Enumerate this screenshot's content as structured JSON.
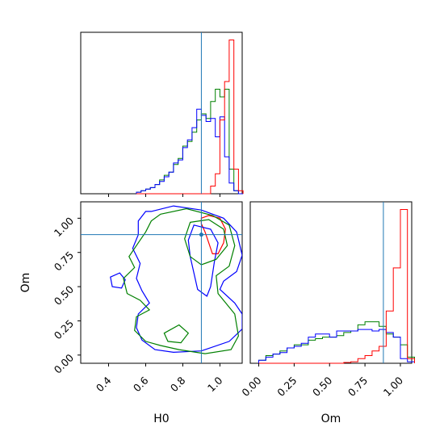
{
  "chart_data": {
    "type": "corner",
    "parameters": [
      "H0",
      "Om"
    ],
    "truth": {
      "H0": 0.9,
      "Om": 0.88
    },
    "series_colors": {
      "red": "#ff0000",
      "green": "#008000",
      "blue": "#0000ff",
      "truth": "#1f77b4"
    },
    "panels": {
      "hist_H0": {
        "xlim": [
          0.25,
          1.12
        ],
        "x_ticks": [
          0.4,
          0.6,
          0.8,
          1.0
        ],
        "x_tick_labels": [
          "0.4",
          "0.6",
          "0.8",
          "1.0"
        ],
        "bins": [
          0.55,
          0.575,
          0.6,
          0.625,
          0.65,
          0.675,
          0.7,
          0.725,
          0.75,
          0.775,
          0.8,
          0.825,
          0.85,
          0.875,
          0.9,
          0.925,
          0.95,
          0.975,
          1.0,
          1.025,
          1.05,
          1.075,
          1.1
        ],
        "red": [
          0,
          0,
          0,
          0,
          0,
          0,
          0,
          0,
          0,
          0,
          0,
          0,
          0,
          0,
          0,
          0,
          0.05,
          0.13,
          0.48,
          0.73,
          1.0,
          0.16,
          0.02
        ],
        "green": [
          0.01,
          0.02,
          0.03,
          0.04,
          0.06,
          0.09,
          0.12,
          0.14,
          0.19,
          0.23,
          0.31,
          0.34,
          0.4,
          0.48,
          0.52,
          0.49,
          0.6,
          0.68,
          0.63,
          0.68,
          0.16,
          0.02,
          0
        ],
        "blue": [
          0.01,
          0.02,
          0.03,
          0.04,
          0.06,
          0.08,
          0.11,
          0.14,
          0.2,
          0.22,
          0.3,
          0.35,
          0.43,
          0.55,
          0.51,
          0.47,
          0.49,
          0.37,
          0.5,
          0.24,
          0.07,
          0.02,
          0
        ]
      },
      "hist_Om": {
        "xlim": [
          -0.06,
          1.08
        ],
        "x_ticks": [
          0.0,
          0.25,
          0.5,
          0.75,
          1.0
        ],
        "x_tick_labels": [
          "0.00",
          "0.25",
          "0.50",
          "0.75",
          "1.00"
        ],
        "bins": [
          0.0,
          0.05,
          0.1,
          0.15,
          0.2,
          0.25,
          0.3,
          0.35,
          0.4,
          0.45,
          0.5,
          0.55,
          0.6,
          0.65,
          0.7,
          0.75,
          0.8,
          0.85,
          0.9,
          0.95,
          1.0,
          1.05
        ],
        "red": [
          0,
          0,
          0,
          0,
          0,
          0,
          0,
          0,
          0,
          0,
          0,
          0,
          0.005,
          0.01,
          0.03,
          0.05,
          0.08,
          0.11,
          0.34,
          0.62,
          1.0,
          0.03
        ],
        "green": [
          0.02,
          0.05,
          0.06,
          0.08,
          0.1,
          0.12,
          0.12,
          0.15,
          0.16,
          0.17,
          0.17,
          0.18,
          0.2,
          0.21,
          0.25,
          0.27,
          0.27,
          0.24,
          0.19,
          0.17,
          0.12,
          0.04
        ],
        "blue": [
          0.02,
          0.04,
          0.06,
          0.07,
          0.1,
          0.11,
          0.13,
          0.17,
          0.19,
          0.19,
          0.17,
          0.21,
          0.21,
          0.21,
          0.22,
          0.22,
          0.21,
          0.22,
          0.2,
          0.17,
          0.03,
          0.01
        ]
      },
      "contour_Om_vs_H0": {
        "xlim": [
          0.25,
          1.12
        ],
        "ylim": [
          -0.06,
          1.12
        ],
        "x_ticks": [
          0.4,
          0.6,
          0.8,
          1.0
        ],
        "x_tick_labels": [
          "0.4",
          "0.6",
          "0.8",
          "1.0"
        ],
        "y_ticks": [
          0.0,
          0.25,
          0.5,
          0.75,
          1.0
        ],
        "y_tick_labels": [
          "0.00",
          "0.25",
          "0.50",
          "0.75",
          "1.00"
        ],
        "contours": [
          {
            "color": "red",
            "points": [
              [
                0.9,
                1.0
              ],
              [
                0.94,
                1.02
              ],
              [
                1.0,
                1.0
              ],
              [
                1.03,
                0.92
              ],
              [
                1.02,
                0.82
              ],
              [
                0.99,
                0.74
              ],
              [
                0.96,
                0.74
              ],
              [
                0.94,
                0.82
              ],
              [
                0.92,
                0.9
              ],
              [
                0.9,
                0.96
              ]
            ]
          },
          {
            "color": "blue",
            "points": [
              [
                0.63,
                1.05
              ],
              [
                0.75,
                1.09
              ],
              [
                0.9,
                1.06
              ],
              [
                1.02,
                1.0
              ],
              [
                1.09,
                0.9
              ],
              [
                1.12,
                0.73
              ],
              [
                1.09,
                0.61
              ],
              [
                1.02,
                0.54
              ],
              [
                1.0,
                0.48
              ],
              [
                1.08,
                0.38
              ],
              [
                1.12,
                0.3
              ],
              [
                1.12,
                0.19
              ],
              [
                1.05,
                0.1
              ],
              [
                0.9,
                0.03
              ],
              [
                0.75,
                0.02
              ],
              [
                0.65,
                0.04
              ],
              [
                0.58,
                0.11
              ],
              [
                0.55,
                0.2
              ],
              [
                0.56,
                0.3
              ],
              [
                0.62,
                0.38
              ],
              [
                0.58,
                0.47
              ],
              [
                0.55,
                0.56
              ],
              [
                0.57,
                0.67
              ],
              [
                0.53,
                0.78
              ],
              [
                0.56,
                0.88
              ],
              [
                0.56,
                0.98
              ],
              [
                0.6,
                1.05
              ]
            ]
          },
          {
            "color": "blue",
            "points": [
              [
                0.86,
                0.95
              ],
              [
                0.95,
                0.92
              ],
              [
                0.99,
                0.82
              ],
              [
                0.97,
                0.68
              ],
              [
                0.95,
                0.5
              ],
              [
                0.93,
                0.43
              ],
              [
                0.88,
                0.48
              ],
              [
                0.86,
                0.6
              ],
              [
                0.84,
                0.72
              ],
              [
                0.83,
                0.84
              ]
            ]
          },
          {
            "color": "blue",
            "points": [
              [
                0.41,
                0.57
              ],
              [
                0.46,
                0.6
              ],
              [
                0.49,
                0.55
              ],
              [
                0.47,
                0.49
              ],
              [
                0.42,
                0.5
              ]
            ]
          },
          {
            "color": "green",
            "points": [
              [
                0.68,
                1.03
              ],
              [
                0.82,
                1.07
              ],
              [
                0.96,
                1.02
              ],
              [
                1.05,
                0.95
              ],
              [
                1.08,
                0.8
              ],
              [
                1.05,
                0.65
              ],
              [
                0.98,
                0.58
              ],
              [
                0.99,
                0.45
              ],
              [
                1.08,
                0.3
              ],
              [
                1.1,
                0.14
              ],
              [
                1.06,
                0.04
              ],
              [
                0.92,
                0.01
              ],
              [
                0.78,
                0.04
              ],
              [
                0.68,
                0.07
              ],
              [
                0.6,
                0.1
              ],
              [
                0.54,
                0.18
              ],
              [
                0.55,
                0.28
              ],
              [
                0.62,
                0.33
              ],
              [
                0.57,
                0.4
              ],
              [
                0.5,
                0.45
              ],
              [
                0.48,
                0.56
              ],
              [
                0.54,
                0.64
              ],
              [
                0.51,
                0.72
              ],
              [
                0.56,
                0.82
              ],
              [
                0.6,
                0.9
              ],
              [
                0.63,
                0.98
              ]
            ]
          },
          {
            "color": "green",
            "points": [
              [
                0.84,
                0.97
              ],
              [
                0.94,
                0.99
              ],
              [
                1.02,
                0.92
              ],
              [
                1.04,
                0.8
              ],
              [
                0.98,
                0.7
              ],
              [
                0.9,
                0.66
              ],
              [
                0.84,
                0.72
              ],
              [
                0.81,
                0.85
              ]
            ]
          },
          {
            "color": "green",
            "points": [
              [
                0.7,
                0.16
              ],
              [
                0.78,
                0.22
              ],
              [
                0.83,
                0.16
              ],
              [
                0.79,
                0.09
              ],
              [
                0.72,
                0.1
              ]
            ]
          }
        ]
      }
    },
    "xlabels": [
      "H0",
      "Om"
    ],
    "ylabels": [
      "",
      "Om"
    ]
  }
}
